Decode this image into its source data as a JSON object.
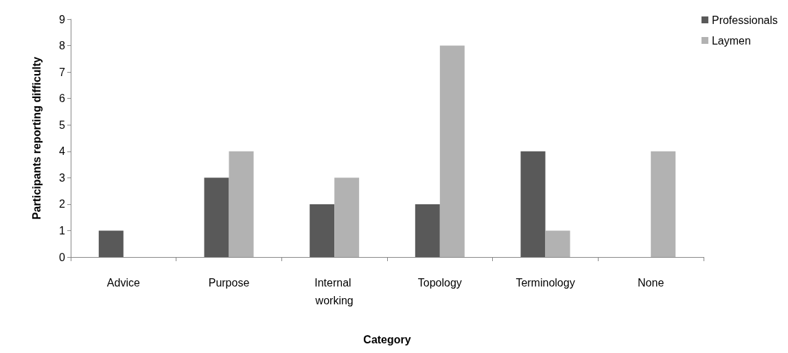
{
  "chart_data": {
    "type": "bar",
    "xlabel": "Category",
    "ylabel": "Participants reporting difficulty",
    "categories": [
      "Advice",
      "Purpose",
      "Internal working",
      "Topology",
      "Terminology",
      "None"
    ],
    "series": [
      {
        "name": "Professionals",
        "color": "#595959",
        "values": [
          1,
          3,
          2,
          2,
          4,
          0
        ]
      },
      {
        "name": "Laymen",
        "color": "#b2b2b2",
        "values": [
          0,
          4,
          3,
          8,
          1,
          4
        ]
      }
    ],
    "ylim": [
      0,
      9
    ],
    "yticks": [
      0,
      1,
      2,
      3,
      4,
      5,
      6,
      7,
      8,
      9
    ],
    "grid": false,
    "legend": "top right"
  }
}
